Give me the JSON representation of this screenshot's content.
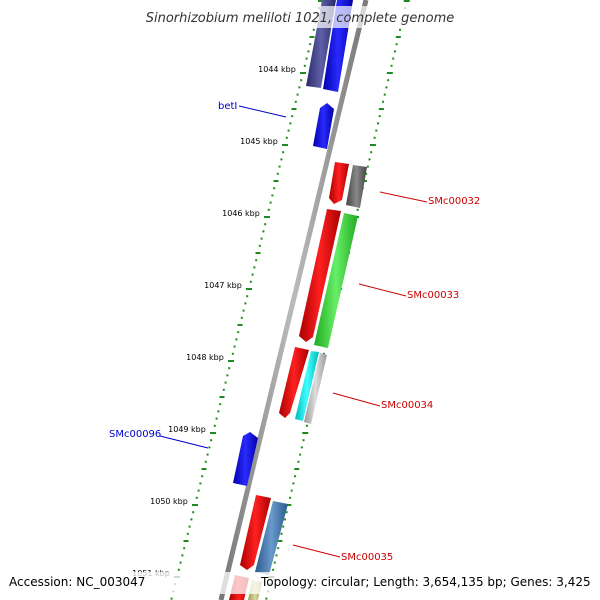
{
  "title": "Sinorhizobium meliloti 1021, complete genome",
  "footer": {
    "accession": "Accession: NC_003047",
    "topology": "Topology: circular; Length: 3,654,135 bp; Genes: 3,425"
  },
  "colors": {
    "forward_label": "#cc0000",
    "reverse_label": "#0000cc",
    "backbone": "#888888",
    "ticks": "#228822"
  },
  "ticks": [
    {
      "kbp": 1044,
      "label": "1044 kbp"
    },
    {
      "kbp": 1045,
      "label": "1045 kbp"
    },
    {
      "kbp": 1046,
      "label": "1046 kbp"
    },
    {
      "kbp": 1047,
      "label": "1047 kbp"
    },
    {
      "kbp": 1048,
      "label": "1048 kbp"
    },
    {
      "kbp": 1049,
      "label": "1049 kbp"
    },
    {
      "kbp": 1050,
      "label": "1050 kbp"
    },
    {
      "kbp": 1051,
      "label": "1051 kbp"
    }
  ],
  "gene_labels": [
    {
      "text": "betI",
      "strand": "reverse"
    },
    {
      "text": "SMc00032",
      "strand": "forward"
    },
    {
      "text": "SMc00033",
      "strand": "forward"
    },
    {
      "text": "SMc00034",
      "strand": "forward"
    },
    {
      "text": "SMc00096",
      "strand": "reverse"
    },
    {
      "text": "SMc00035",
      "strand": "forward"
    }
  ]
}
